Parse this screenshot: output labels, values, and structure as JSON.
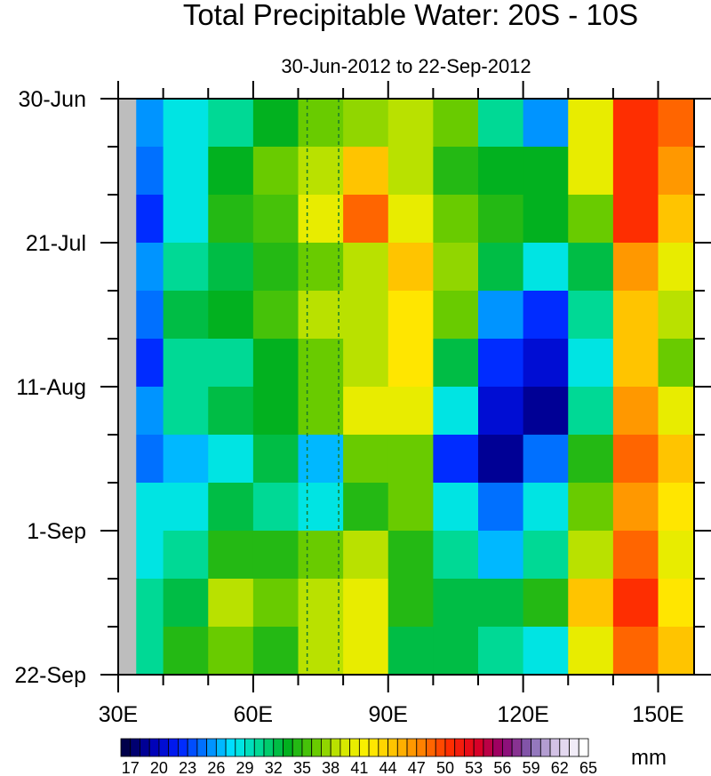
{
  "chart_data": {
    "type": "heatmap",
    "title": "Total Precipitable Water: 20S - 10S",
    "subtitle": "30-Jun-2012 to 22-Sep-2012",
    "xlabel": "",
    "ylabel": "",
    "xlim": [
      30,
      158
    ],
    "x_ticks": [
      {
        "value": 30,
        "label": "30E"
      },
      {
        "value": 60,
        "label": "60E"
      },
      {
        "value": 90,
        "label": "90E"
      },
      {
        "value": 120,
        "label": "120E"
      },
      {
        "value": 150,
        "label": "150E"
      }
    ],
    "x_minor_step": 10,
    "ylim_days": [
      0,
      84
    ],
    "y_ticks": [
      {
        "day": 0,
        "label": "30-Jun"
      },
      {
        "day": 21,
        "label": "21-Jul"
      },
      {
        "day": 42,
        "label": "11-Aug"
      },
      {
        "day": 63,
        "label": "1-Sep"
      },
      {
        "day": 84,
        "label": "22-Sep"
      }
    ],
    "y_minor_step_days": 7,
    "lon_centers": [
      35,
      45,
      55,
      65,
      75,
      85,
      95,
      105,
      115,
      125,
      135,
      145,
      155
    ],
    "week_rows": [
      "30-Jun",
      "7-Jul",
      "14-Jul",
      "21-Jul",
      "28-Jul",
      "4-Aug",
      "11-Aug",
      "18-Aug",
      "25-Aug",
      "1-Sep",
      "8-Sep",
      "15-Sep"
    ],
    "values_mm": [
      [
        25,
        28,
        30,
        33,
        36,
        37,
        38,
        36,
        30,
        25,
        40,
        50,
        48
      ],
      [
        24,
        28,
        33,
        36,
        38,
        44,
        38,
        34,
        33,
        33,
        40,
        50,
        46
      ],
      [
        22,
        28,
        34,
        35,
        40,
        48,
        40,
        36,
        34,
        33,
        36,
        50,
        44
      ],
      [
        25,
        30,
        32,
        34,
        36,
        38,
        44,
        37,
        32,
        28,
        32,
        46,
        40
      ],
      [
        24,
        32,
        33,
        35,
        38,
        38,
        42,
        36,
        25,
        22,
        30,
        44,
        38
      ],
      [
        22,
        30,
        30,
        33,
        36,
        38,
        42,
        32,
        22,
        20,
        28,
        44,
        36
      ],
      [
        25,
        30,
        32,
        33,
        36,
        40,
        40,
        28,
        20,
        18,
        30,
        46,
        40
      ],
      [
        24,
        26,
        28,
        32,
        26,
        36,
        36,
        22,
        18,
        24,
        34,
        48,
        44
      ],
      [
        28,
        28,
        32,
        30,
        28,
        34,
        36,
        28,
        24,
        28,
        36,
        46,
        42
      ],
      [
        28,
        30,
        34,
        34,
        36,
        38,
        34,
        30,
        26,
        30,
        38,
        48,
        40
      ],
      [
        30,
        32,
        38,
        36,
        38,
        40,
        34,
        32,
        32,
        34,
        44,
        50,
        42
      ],
      [
        30,
        34,
        36,
        34,
        38,
        40,
        32,
        32,
        30,
        28,
        40,
        48,
        44
      ]
    ],
    "missing_lon_range": [
      30,
      34
    ],
    "dashed_lines_lon": [
      72,
      79
    ],
    "colorbar": {
      "min": 16,
      "max": 64,
      "step": 1,
      "labels": [
        "17",
        "20",
        "23",
        "26",
        "29",
        "32",
        "35",
        "38",
        "41",
        "44",
        "47",
        "50",
        "53",
        "56",
        "59",
        "62",
        "65"
      ],
      "units": "mm",
      "colors": [
        "#00004a",
        "#0000b4",
        "#0020ff",
        "#0080ff",
        "#00e8ff",
        "#00d890",
        "#00b020",
        "#60c800",
        "#d0e800",
        "#fff000",
        "#ffc000",
        "#ff8000",
        "#ff3000",
        "#e00020",
        "#900070",
        "#8060b0",
        "#d8c8e8",
        "#ffffff"
      ]
    }
  }
}
